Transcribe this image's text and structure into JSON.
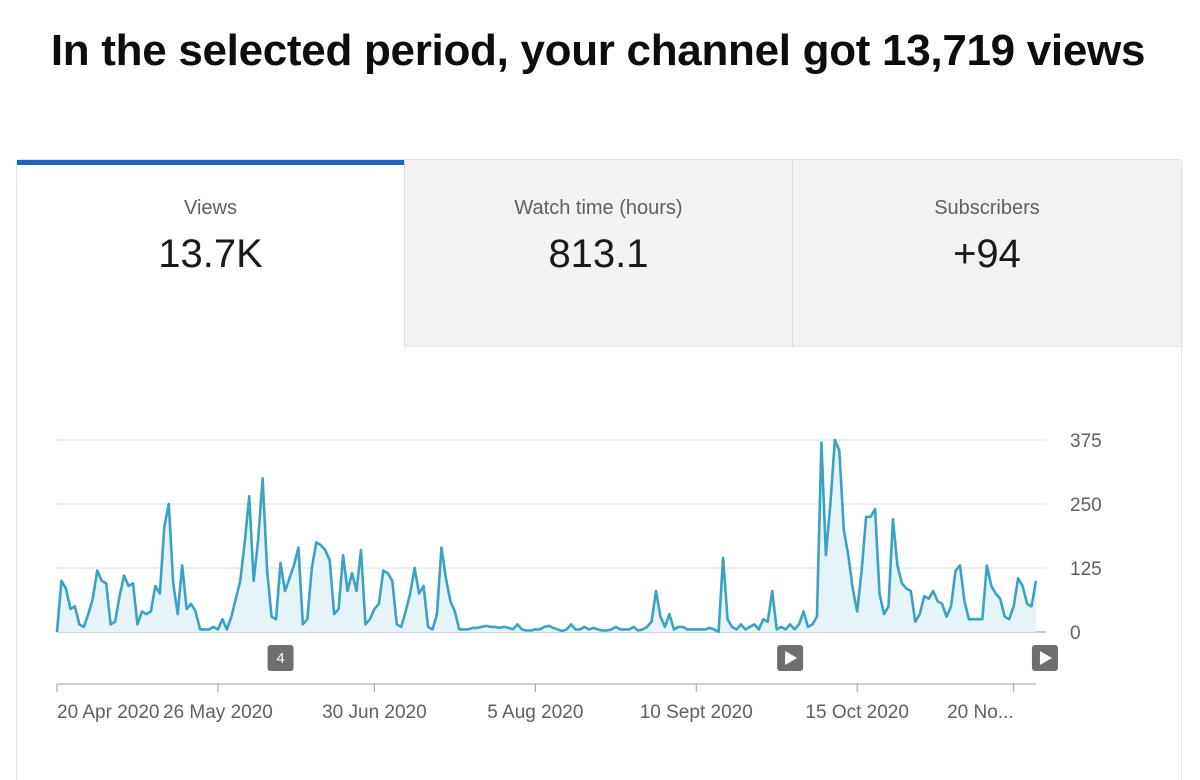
{
  "headline": "In the selected period, your channel got 13,719 views",
  "tabs": [
    {
      "label": "Views",
      "value": "13.7K",
      "selected": true
    },
    {
      "label": "Watch time (hours)",
      "value": "813.1",
      "selected": false
    },
    {
      "label": "Subscribers",
      "value": "+94",
      "selected": false
    }
  ],
  "colors": {
    "accent": "#1b63c4",
    "line": "#3aa3c5",
    "fill": "#e6f3f8"
  },
  "annotations": [
    {
      "label": "4",
      "date_index": 50,
      "icon": "number-marker"
    },
    {
      "label": "",
      "date_index": 164,
      "icon": "play-icon"
    },
    {
      "label": "",
      "date_index": 221,
      "icon": "play-icon"
    }
  ],
  "chart_data": {
    "type": "area",
    "title": "",
    "xlabel": "",
    "ylabel": "",
    "ylim": [
      0,
      375
    ],
    "yticks": [
      0,
      125,
      250,
      375
    ],
    "ytick_labels": [
      "0",
      "125",
      "250",
      "375"
    ],
    "grid": true,
    "x_start": "20 Apr 2020",
    "x_tick_indices": [
      0,
      36,
      71,
      107,
      143,
      179,
      214
    ],
    "x_tick_labels": [
      "20 Apr 2020",
      "26 May 2020",
      "30 Jun 2020",
      "5 Aug 2020",
      "10 Sept 2020",
      "15 Oct 2020",
      "20 No..."
    ],
    "series": [
      {
        "values": [
          0,
          100,
          85,
          45,
          50,
          15,
          10,
          35,
          65,
          120,
          100,
          95,
          15,
          20,
          70,
          110,
          90,
          95,
          15,
          40,
          35,
          40,
          90,
          75,
          205,
          250,
          95,
          35,
          130,
          45,
          55,
          40,
          5,
          5,
          5,
          10,
          5,
          25,
          5,
          30,
          65,
          100,
          175,
          265,
          100,
          180,
          300,
          120,
          30,
          25,
          135,
          80,
          105,
          130,
          165,
          15,
          25,
          125,
          175,
          170,
          160,
          140,
          35,
          45,
          150,
          80,
          115,
          80,
          160,
          15,
          25,
          45,
          55,
          120,
          115,
          100,
          15,
          10,
          40,
          75,
          125,
          75,
          90,
          10,
          5,
          35,
          165,
          105,
          60,
          40,
          5,
          5,
          5,
          8,
          8,
          10,
          12,
          10,
          10,
          8,
          10,
          8,
          5,
          15,
          5,
          3,
          3,
          5,
          5,
          10,
          12,
          8,
          5,
          2,
          5,
          15,
          5,
          5,
          10,
          5,
          8,
          5,
          3,
          3,
          5,
          10,
          5,
          5,
          5,
          10,
          3,
          5,
          10,
          20,
          80,
          30,
          10,
          35,
          5,
          10,
          10,
          5,
          5,
          5,
          5,
          5,
          8,
          5,
          0,
          145,
          25,
          10,
          5,
          15,
          5,
          10,
          15,
          5,
          25,
          20,
          80,
          5,
          10,
          5,
          15,
          5,
          15,
          40,
          10,
          15,
          30,
          370,
          150,
          250,
          375,
          355,
          200,
          150,
          85,
          40,
          120,
          225,
          225,
          240,
          75,
          35,
          50,
          220,
          130,
          95,
          85,
          80,
          20,
          35,
          70,
          65,
          80,
          60,
          55,
          30,
          50,
          120,
          130,
          60,
          25,
          25,
          25,
          25,
          130,
          90,
          75,
          65,
          30,
          25,
          50,
          105,
          90,
          55,
          50,
          100
        ]
      }
    ]
  }
}
